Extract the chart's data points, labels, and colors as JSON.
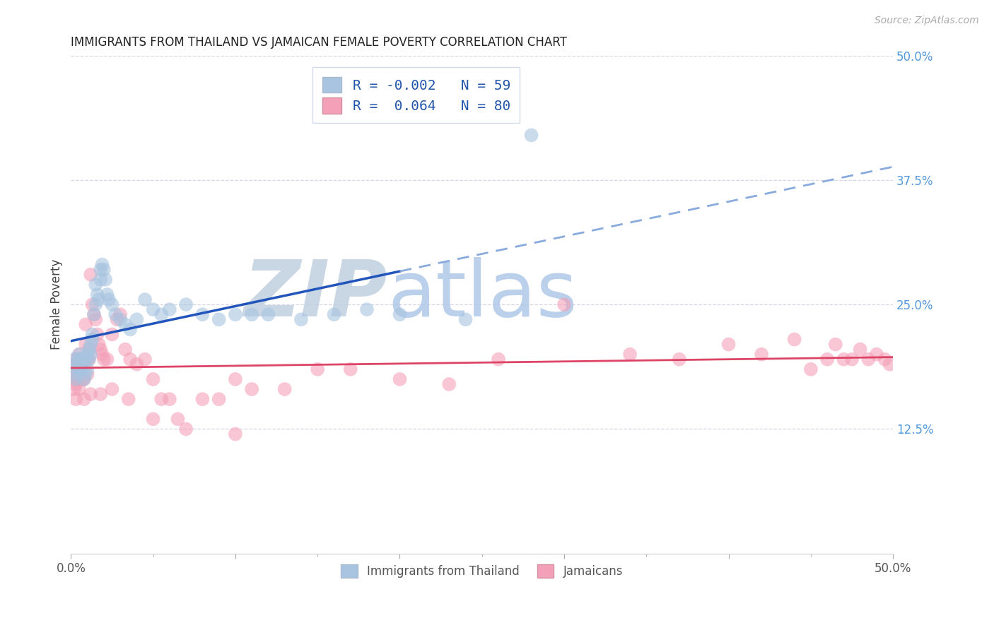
{
  "title": "IMMIGRANTS FROM THAILAND VS JAMAICAN FEMALE POVERTY CORRELATION CHART",
  "source": "Source: ZipAtlas.com",
  "ylabel": "Female Poverty",
  "right_yticks": [
    "50.0%",
    "37.5%",
    "25.0%",
    "12.5%"
  ],
  "right_ytick_vals": [
    0.5,
    0.375,
    0.25,
    0.125
  ],
  "xlim": [
    0.0,
    0.5
  ],
  "ylim": [
    0.0,
    0.5
  ],
  "legend_r1": "R = -0.002",
  "legend_n1": "N = 59",
  "legend_r2": "R =  0.064",
  "legend_n2": "N = 80",
  "color_blue": "#a8c4e0",
  "color_pink": "#f4a0b8",
  "color_blue_line": "#2255bb",
  "color_blue_dashed": "#88aadd",
  "color_pink_line": "#dd4466",
  "color_grid": "#ccccdd",
  "color_title": "#222222",
  "color_source": "#aaaaaa",
  "color_right_labels": "#5599dd",
  "color_legend_text": "#2255aa",
  "watermark_zip_color": "#c0cfe0",
  "watermark_atlas_color": "#b0c8e8",
  "thai_x": [
    0.001,
    0.002,
    0.003,
    0.003,
    0.004,
    0.004,
    0.005,
    0.005,
    0.005,
    0.006,
    0.006,
    0.007,
    0.007,
    0.008,
    0.008,
    0.009,
    0.009,
    0.01,
    0.01,
    0.011,
    0.011,
    0.012,
    0.012,
    0.013,
    0.013,
    0.014,
    0.015,
    0.015,
    0.016,
    0.017,
    0.018,
    0.018,
    0.019,
    0.02,
    0.021,
    0.022,
    0.023,
    0.025,
    0.027,
    0.03,
    0.033,
    0.036,
    0.04,
    0.045,
    0.05,
    0.055,
    0.06,
    0.07,
    0.08,
    0.09,
    0.1,
    0.11,
    0.12,
    0.14,
    0.16,
    0.18,
    0.2,
    0.24,
    0.28
  ],
  "thai_y": [
    0.19,
    0.195,
    0.18,
    0.175,
    0.19,
    0.185,
    0.2,
    0.195,
    0.185,
    0.195,
    0.185,
    0.195,
    0.185,
    0.195,
    0.175,
    0.195,
    0.18,
    0.2,
    0.185,
    0.205,
    0.195,
    0.21,
    0.2,
    0.215,
    0.22,
    0.24,
    0.25,
    0.27,
    0.26,
    0.255,
    0.275,
    0.285,
    0.29,
    0.285,
    0.275,
    0.26,
    0.255,
    0.25,
    0.24,
    0.235,
    0.23,
    0.225,
    0.235,
    0.255,
    0.245,
    0.24,
    0.245,
    0.25,
    0.24,
    0.235,
    0.24,
    0.24,
    0.24,
    0.235,
    0.24,
    0.245,
    0.24,
    0.235,
    0.42
  ],
  "jam_x": [
    0.001,
    0.001,
    0.002,
    0.002,
    0.003,
    0.003,
    0.004,
    0.004,
    0.005,
    0.005,
    0.006,
    0.006,
    0.007,
    0.007,
    0.008,
    0.008,
    0.009,
    0.009,
    0.01,
    0.01,
    0.011,
    0.011,
    0.012,
    0.013,
    0.014,
    0.015,
    0.016,
    0.017,
    0.018,
    0.019,
    0.02,
    0.022,
    0.025,
    0.028,
    0.03,
    0.033,
    0.036,
    0.04,
    0.045,
    0.05,
    0.055,
    0.06,
    0.065,
    0.07,
    0.08,
    0.09,
    0.1,
    0.11,
    0.13,
    0.15,
    0.17,
    0.2,
    0.23,
    0.26,
    0.3,
    0.34,
    0.37,
    0.4,
    0.42,
    0.44,
    0.45,
    0.46,
    0.465,
    0.47,
    0.475,
    0.48,
    0.485,
    0.49,
    0.495,
    0.498,
    0.002,
    0.003,
    0.005,
    0.008,
    0.012,
    0.018,
    0.025,
    0.035,
    0.05,
    0.1
  ],
  "jam_y": [
    0.19,
    0.18,
    0.185,
    0.175,
    0.195,
    0.17,
    0.19,
    0.175,
    0.2,
    0.185,
    0.195,
    0.175,
    0.19,
    0.175,
    0.195,
    0.175,
    0.23,
    0.21,
    0.195,
    0.18,
    0.205,
    0.195,
    0.28,
    0.25,
    0.24,
    0.235,
    0.22,
    0.21,
    0.205,
    0.2,
    0.195,
    0.195,
    0.22,
    0.235,
    0.24,
    0.205,
    0.195,
    0.19,
    0.195,
    0.175,
    0.155,
    0.155,
    0.135,
    0.125,
    0.155,
    0.155,
    0.175,
    0.165,
    0.165,
    0.185,
    0.185,
    0.175,
    0.17,
    0.195,
    0.25,
    0.2,
    0.195,
    0.21,
    0.2,
    0.215,
    0.185,
    0.195,
    0.21,
    0.195,
    0.195,
    0.205,
    0.195,
    0.2,
    0.195,
    0.19,
    0.165,
    0.155,
    0.165,
    0.155,
    0.16,
    0.16,
    0.165,
    0.155,
    0.135,
    0.12
  ]
}
